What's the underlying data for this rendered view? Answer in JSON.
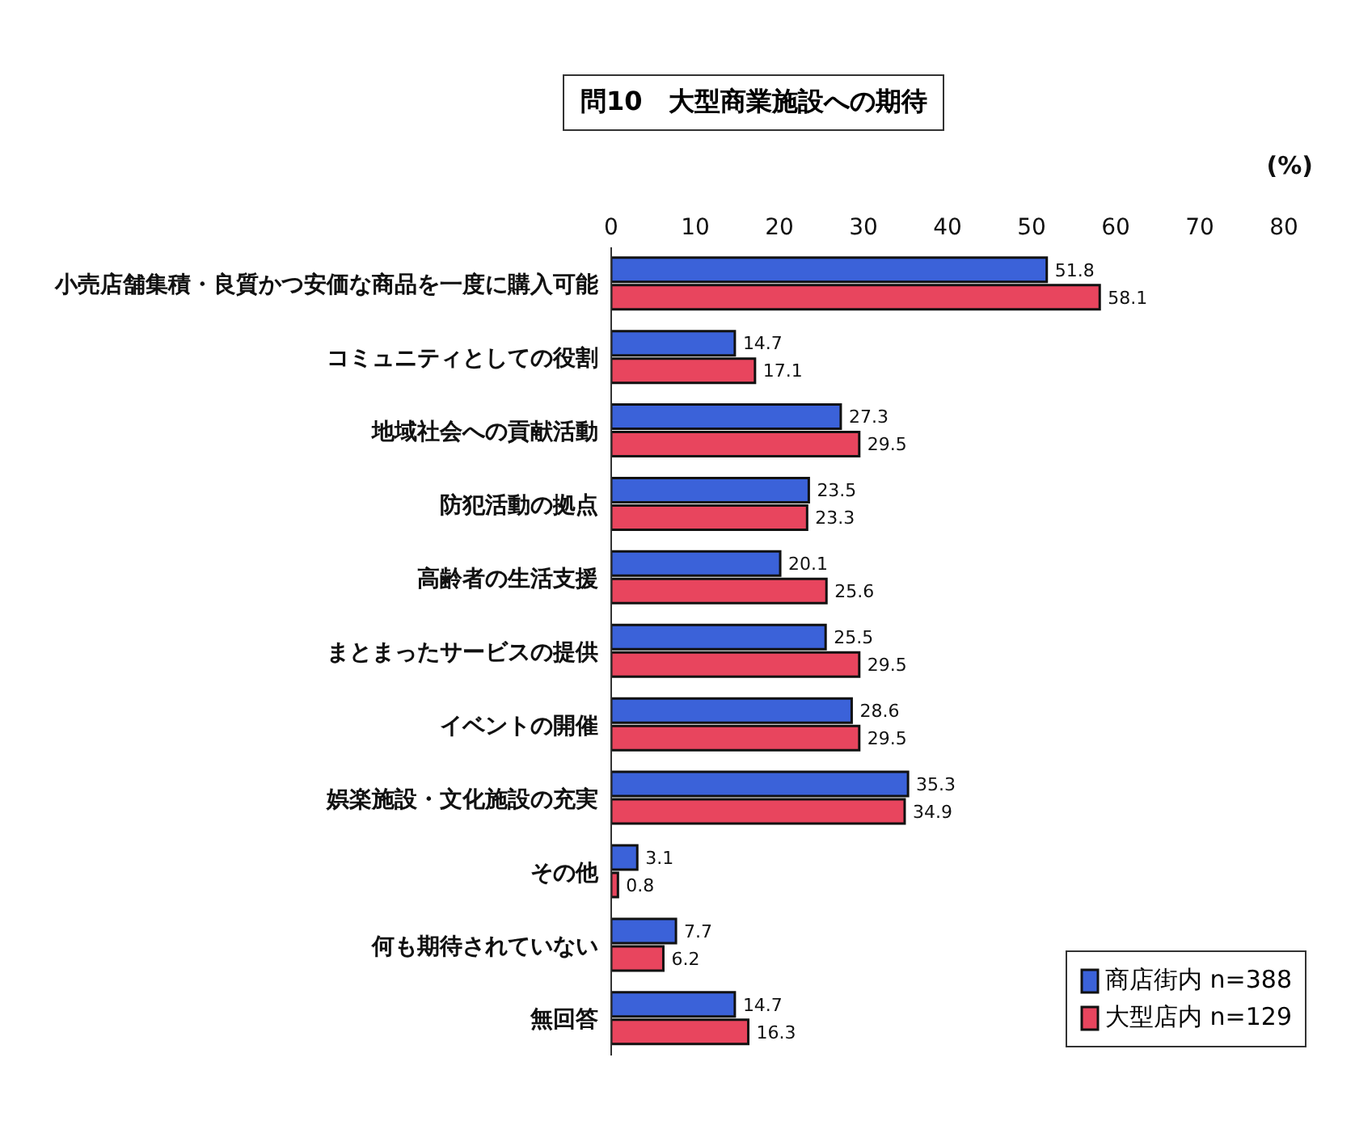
{
  "chart_data": {
    "type": "bar",
    "orientation": "horizontal",
    "title": "問10　大型商業施設への期待",
    "xlabel": "(%)",
    "categories": [
      "小売店舗集積・良質かつ安価な商品を一度に購入可能",
      "コミュニティとしての役割",
      "地域社会への貢献活動",
      "防犯活動の拠点",
      "高齢者の生活支援",
      "まとまったサービスの提供",
      "イベントの開催",
      "娯楽施設・文化施設の充実",
      "その他",
      "何も期待されていない",
      "無回答"
    ],
    "series": [
      {
        "name": "商店街内 n=388",
        "color": "#3b62d9",
        "values": [
          51.8,
          14.7,
          27.3,
          23.5,
          20.1,
          25.5,
          28.6,
          35.3,
          3.1,
          7.7,
          14.7
        ]
      },
      {
        "name": "大型店内 n=129",
        "color": "#e8455e",
        "values": [
          58.1,
          17.1,
          29.5,
          23.3,
          25.6,
          29.5,
          29.5,
          34.9,
          0.8,
          6.2,
          16.3
        ]
      }
    ],
    "xlim": [
      0,
      80
    ],
    "xticks": [
      0,
      10,
      20,
      30,
      40,
      50,
      60,
      70,
      80
    ],
    "data_labels": true,
    "legend": "bottom right"
  }
}
